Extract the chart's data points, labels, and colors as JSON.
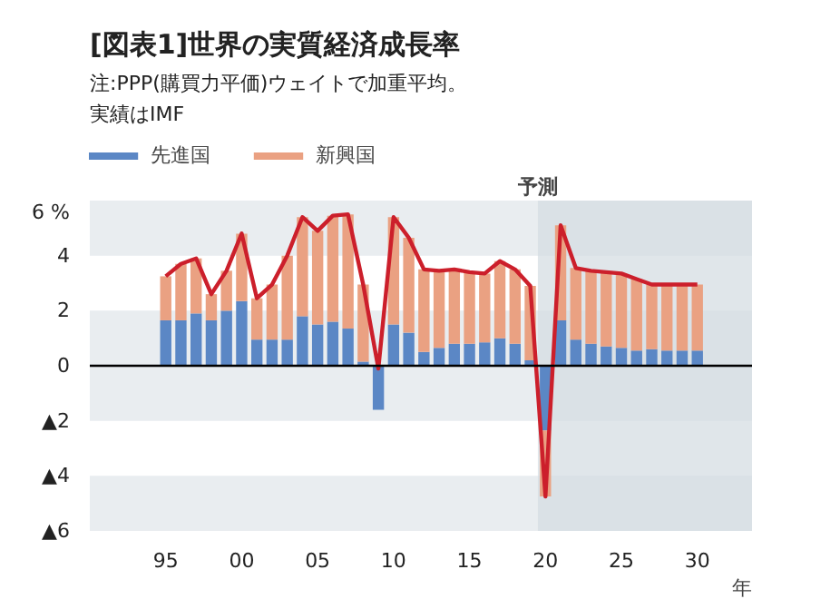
{
  "chart_data": {
    "type": "bar",
    "title": "[図表1]世界の実質経済成長率",
    "annotations": [
      "注:PPP(購買力平価)ウェイトで加重平均。",
      "実績はIMF"
    ],
    "xlabel": "年",
    "stacked": true,
    "legend": "top left",
    "grid": false,
    "x": [
      1995,
      1996,
      1997,
      1998,
      1999,
      2000,
      2001,
      2002,
      2003,
      2004,
      2005,
      2006,
      2007,
      2008,
      2009,
      2010,
      2011,
      2012,
      2013,
      2014,
      2015,
      2016,
      2017,
      2018,
      2019,
      2020,
      2021,
      2022,
      2023,
      2024,
      2025,
      2026,
      2027,
      2028,
      2029,
      2030
    ],
    "xlim": [
      1990,
      2033.6
    ],
    "xticks": [
      {
        "value": 1995,
        "label": "95"
      },
      {
        "value": 2000,
        "label": "00"
      },
      {
        "value": 2005,
        "label": "05"
      },
      {
        "value": 2010,
        "label": "10"
      },
      {
        "value": 2015,
        "label": "15"
      },
      {
        "value": 2020,
        "label": "20"
      },
      {
        "value": 2025,
        "label": "25"
      },
      {
        "value": 2030,
        "label": "30"
      }
    ],
    "ylim": [
      -6,
      6
    ],
    "yticks": [
      {
        "value": 6,
        "label": "6 %"
      },
      4,
      2,
      0,
      {
        "value": -2,
        "label": "▲2"
      },
      {
        "value": -4,
        "label": "▲4"
      },
      {
        "value": -6,
        "label": "▲6"
      }
    ],
    "series": [
      {
        "name": "先進国",
        "color": "#5b87c5",
        "values": [
          1.65,
          1.65,
          1.9,
          1.65,
          2.0,
          2.35,
          0.95,
          0.95,
          0.95,
          1.8,
          1.5,
          1.6,
          1.35,
          0.15,
          -1.6,
          1.5,
          1.2,
          0.5,
          0.65,
          0.8,
          0.8,
          0.85,
          1.0,
          0.8,
          0.2,
          -2.35,
          1.65,
          0.95,
          0.8,
          0.7,
          0.65,
          0.55,
          0.6,
          0.55,
          0.55,
          0.55
        ]
      },
      {
        "name": "新興国",
        "color": "#eaa182",
        "values": [
          1.6,
          2.05,
          2.0,
          0.95,
          1.45,
          2.45,
          1.5,
          2.0,
          3.05,
          3.6,
          3.4,
          3.85,
          4.15,
          2.8,
          null,
          3.9,
          3.45,
          3.0,
          2.8,
          2.7,
          2.6,
          2.5,
          2.8,
          2.7,
          2.7,
          -2.4,
          3.45,
          2.6,
          2.65,
          2.7,
          2.7,
          2.6,
          2.35,
          2.4,
          2.4,
          2.4
        ]
      },
      {
        "type": "line",
        "color": "#cc1f2b",
        "values": [
          3.25,
          3.7,
          3.9,
          2.6,
          3.45,
          4.8,
          2.45,
          2.95,
          4.0,
          5.4,
          4.9,
          5.45,
          5.5,
          2.95,
          -0.1,
          5.4,
          4.65,
          3.5,
          3.45,
          3.5,
          3.4,
          3.35,
          3.8,
          3.5,
          2.9,
          -4.75,
          5.1,
          3.55,
          3.45,
          3.4,
          3.35,
          3.15,
          2.95,
          2.95,
          2.95,
          2.95
        ]
      }
    ],
    "bands": [
      {
        "axis": "y",
        "from": 4,
        "to": 6,
        "color": "#e9edf0"
      },
      {
        "axis": "y",
        "from": -2,
        "to": 2,
        "color": "#e9edf0"
      },
      {
        "axis": "y",
        "from": -6,
        "to": -4,
        "color": "#e9edf0"
      },
      {
        "axis": "x",
        "from": 2019.5,
        "to": 2033.6,
        "label": "予測",
        "color": "#d3dbe1"
      }
    ],
    "ref_lines": [
      {
        "axis": "y",
        "value": 0,
        "color": "#000000"
      }
    ]
  }
}
